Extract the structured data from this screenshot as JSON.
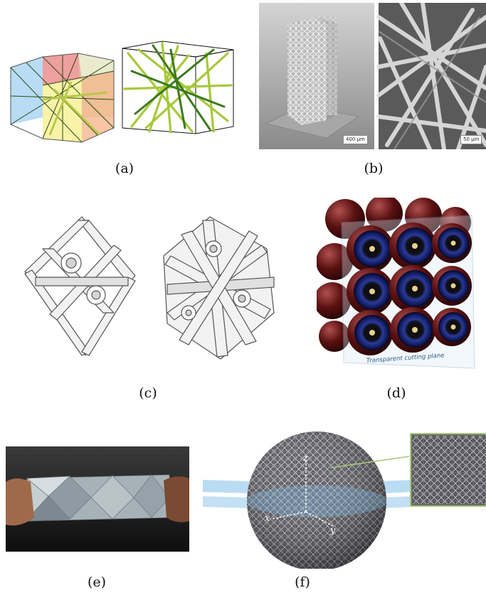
{
  "figure": {
    "captions": {
      "a": "(a)",
      "b": "(b)",
      "c": "(c)",
      "d": "(d)",
      "e": "(e)",
      "f": "(f)"
    },
    "panel_b": {
      "scale_left": "400 µm",
      "scale_right": "50 µm"
    },
    "panel_d": {
      "plane_label": "Transparent cutting plane"
    },
    "panel_f": {
      "axes": {
        "z": "z",
        "x": "x",
        "y": "y"
      }
    },
    "colors": {
      "lattice_green": "#8fb83a",
      "dark_green": "#3d7a1e",
      "sphere_maroon": "#5a1010",
      "ring_blue": "#1b2a7a",
      "plane_blue": "#a9d3f0",
      "inset_border": "#a8c878"
    }
  }
}
